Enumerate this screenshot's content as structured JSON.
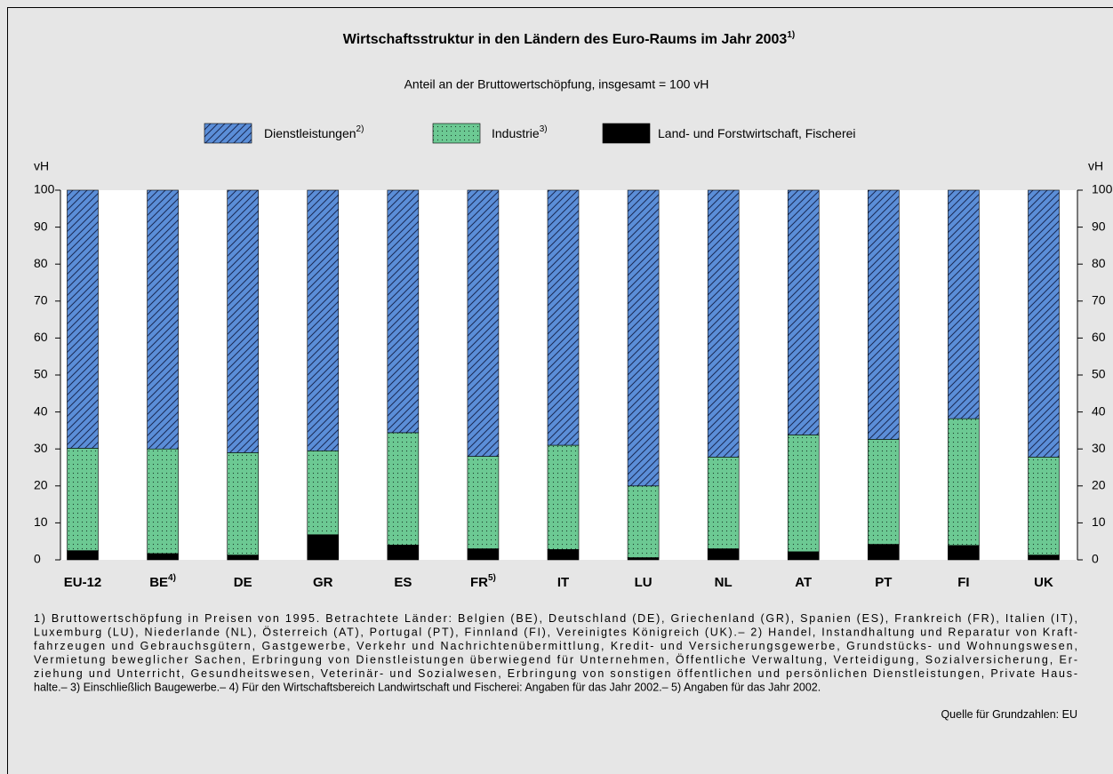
{
  "chart_data": {
    "type": "stacked-bar",
    "title": "Wirtschaftsstruktur in den Ländern des Euro-Raums im Jahr 2003",
    "title_note": "1)",
    "subtitle": "Anteil an der Bruttowertschöpfung, insgesamt = 100 vH",
    "y_label": "vH",
    "categories": [
      "EU-12",
      "BE",
      "DE",
      "GR",
      "ES",
      "FR",
      "IT",
      "LU",
      "NL",
      "AT",
      "PT",
      "FI",
      "UK"
    ],
    "category_notes": [
      null,
      "4)",
      null,
      null,
      null,
      "5)",
      null,
      null,
      null,
      null,
      null,
      null,
      null
    ],
    "series": [
      {
        "name": "Land- und Forstwirtschaft, Fischerei",
        "color": "#000000",
        "pattern": "solid",
        "values": [
          2.5,
          1.7,
          1.3,
          6.8,
          4.0,
          3.0,
          2.8,
          0.6,
          3.0,
          2.2,
          4.2,
          3.9,
          1.3
        ]
      },
      {
        "name": "Industrie",
        "name_note": "3)",
        "color": "#6cc993",
        "pattern": "dots",
        "values": [
          27.7,
          28.3,
          27.7,
          22.7,
          30.4,
          25.0,
          28.2,
          19.4,
          24.8,
          31.6,
          28.4,
          34.3,
          26.5
        ]
      },
      {
        "name": "Dienstleistungen",
        "name_note": "2)",
        "color": "#5b8ed8",
        "pattern": "hatch",
        "values": [
          69.8,
          70.0,
          71.0,
          70.5,
          65.6,
          72.0,
          69.0,
          80.0,
          72.2,
          66.2,
          67.4,
          61.8,
          72.2
        ]
      }
    ],
    "ylim": [
      0,
      100
    ],
    "yticks": [
      0,
      10,
      20,
      30,
      40,
      50,
      60,
      70,
      80,
      90,
      100
    ],
    "footnotes": [
      "1) Bruttowertschöpfung in Preisen von 1995. Betrachtete Länder: Belgien (BE), Deutschland (DE), Griechenland (GR), Spanien (ES), Frankreich (FR), Italien (IT),",
      "Luxemburg (LU), Niederlande (NL), Österreich (AT), Portugal (PT), Finnland (FI), Vereinigtes Königreich (UK).– 2) Handel, Instandhaltung und Reparatur von Kraft-",
      "fahrzeugen und Gebrauchsgütern, Gastgewerbe, Verkehr und Nachrichtenübermittlung, Kredit- und Versicherungsgewerbe, Grundstücks- und Wohnungswesen,",
      "Vermietung beweglicher Sachen, Erbringung von Dienstleistungen überwiegend für Unternehmen, Öffentliche Verwaltung, Verteidigung, Sozialversicherung, Er-",
      "ziehung und Unterricht, Gesundheitswesen, Veterinär- und Sozialwesen, Erbringung von sonstigen öffentlichen und persönlichen Dienstleistungen, Private Haus-",
      "halte.– 3) Einschließlich Baugewerbe.– 4) Für den Wirtschaftsbereich Landwirtschaft und Fischerei: Angaben für das Jahr 2002.– 5) Angaben für das Jahr 2002."
    ],
    "source": "Quelle für Grundzahlen: EU"
  }
}
